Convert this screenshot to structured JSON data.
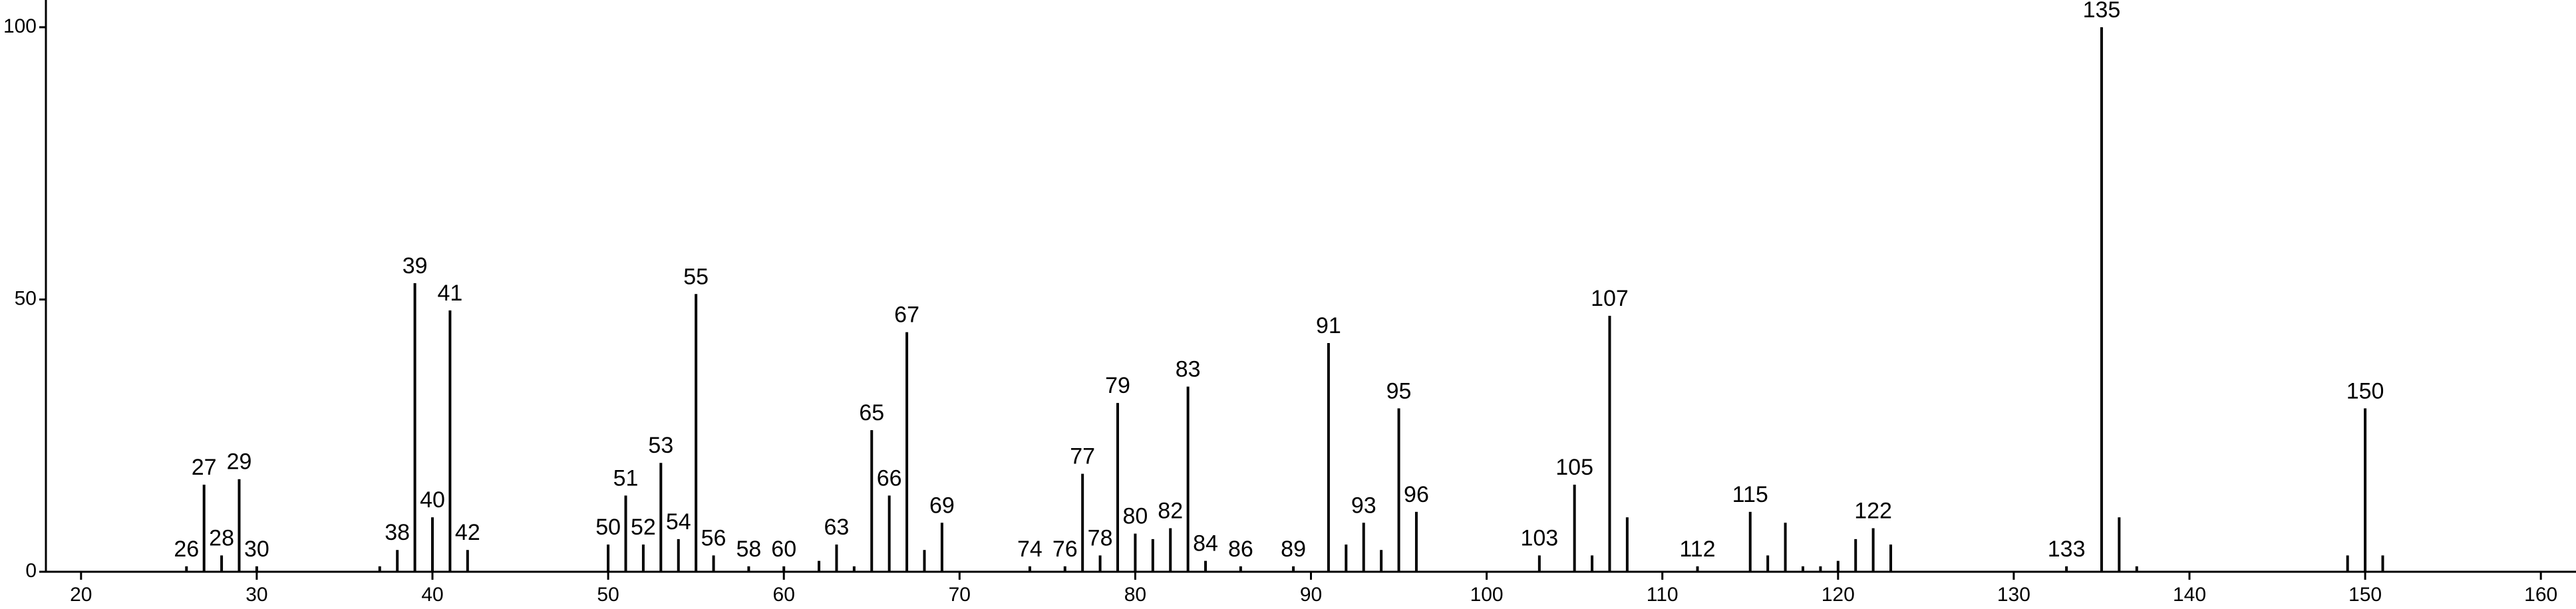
{
  "chart_data": {
    "type": "stem",
    "xlim": [
      18,
      162
    ],
    "ylim": [
      0,
      105
    ],
    "xticks": [
      20,
      30,
      40,
      50,
      60,
      70,
      80,
      90,
      100,
      110,
      120,
      130,
      140,
      150,
      160
    ],
    "yticks": [
      0,
      50,
      100
    ],
    "series": [
      {
        "color": "#000000",
        "show_labels": true,
        "x": [
          26,
          27,
          28,
          29,
          30,
          38,
          39,
          40,
          41,
          42,
          50,
          51,
          52,
          53,
          54,
          55,
          56,
          58,
          60,
          63,
          65,
          66,
          67,
          69,
          74,
          76,
          77,
          78,
          79,
          80,
          82,
          83,
          84,
          86,
          89,
          91,
          93,
          95,
          96,
          103,
          105,
          107,
          112,
          115,
          122,
          133,
          135,
          150
        ],
        "values": [
          1,
          16,
          3,
          17,
          1,
          4,
          53,
          10,
          48,
          4,
          5,
          14,
          5,
          20,
          6,
          51,
          3,
          1,
          1,
          5,
          26,
          14,
          44,
          9,
          1,
          1,
          18,
          3,
          31,
          7,
          8,
          34,
          2,
          1,
          1,
          42,
          9,
          30,
          11,
          3,
          16,
          47,
          1,
          11,
          8,
          1,
          100,
          30
        ]
      },
      {
        "color": "#000000",
        "show_labels": false,
        "x": [
          37,
          62,
          64,
          68,
          81,
          92,
          94,
          106,
          108,
          116,
          117,
          118,
          119,
          120,
          121,
          123,
          136,
          137,
          149,
          151
        ],
        "values": [
          1,
          2,
          1,
          4,
          6,
          5,
          4,
          3,
          10,
          3,
          9,
          1,
          1,
          2,
          6,
          5,
          10,
          1,
          3,
          3
        ]
      }
    ]
  }
}
